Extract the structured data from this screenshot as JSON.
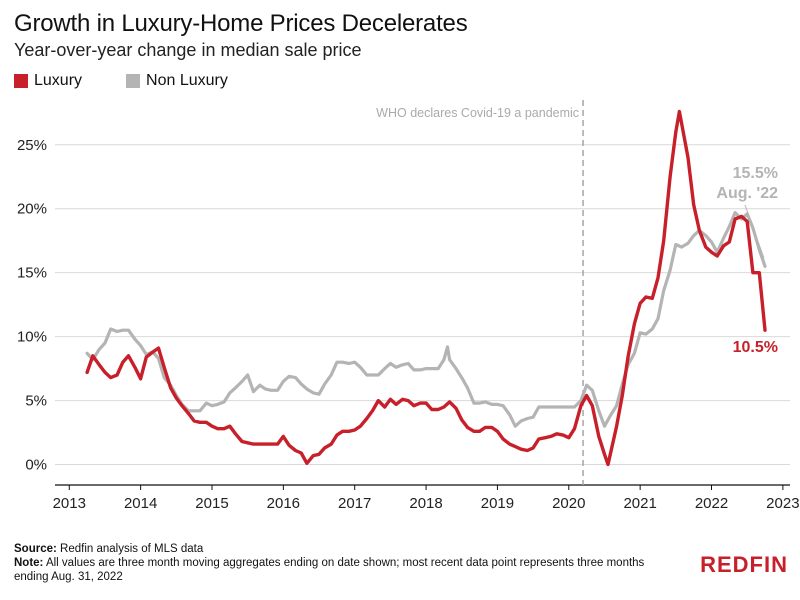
{
  "header": {
    "title": "Growth in Luxury-Home Prices Decelerates",
    "subtitle": "Year-over-year change in median sale price"
  },
  "footer": {
    "source_label": "Source:",
    "source_text": "Redfin analysis of MLS data",
    "note_label": "Note:",
    "note_text": "All values are three month moving aggregates ending on date shown; most recent data point represents three months ending Aug. 31, 2022"
  },
  "logo": {
    "text": "REDFIN"
  },
  "colors": {
    "luxury": "#c8202a",
    "non_luxury": "#b4b4b4",
    "grid": "#d9d9d9",
    "vline": "#a6a6a6"
  },
  "chart_data": {
    "type": "line",
    "title": "Growth in Luxury-Home Prices Decelerates",
    "subtitle": "Year-over-year change in median sale price",
    "x_ticks": [
      "2013",
      "2014",
      "2015",
      "2016",
      "2017",
      "2018",
      "2019",
      "2020",
      "2021",
      "2022",
      "2023"
    ],
    "y_ticks": [
      0,
      5,
      10,
      15,
      20,
      25
    ],
    "y_tick_suffix": "%",
    "ylim": [
      -1.6,
      28.5
    ],
    "xlim": [
      2012.8,
      2023.1
    ],
    "grid": "horizontal",
    "legend": "top-left",
    "series": [
      {
        "name": "Luxury",
        "color": "#c8202a",
        "points": [
          [
            2013.25,
            7.2
          ],
          [
            2013.33,
            8.5
          ],
          [
            2013.42,
            7.8
          ],
          [
            2013.5,
            7.2
          ],
          [
            2013.58,
            6.8
          ],
          [
            2013.67,
            7.0
          ],
          [
            2013.75,
            8.0
          ],
          [
            2013.83,
            8.5
          ],
          [
            2013.92,
            7.6
          ],
          [
            2014.0,
            6.7
          ],
          [
            2014.08,
            8.4
          ],
          [
            2014.17,
            8.8
          ],
          [
            2014.25,
            9.1
          ],
          [
            2014.33,
            7.6
          ],
          [
            2014.42,
            6.0
          ],
          [
            2014.5,
            5.2
          ],
          [
            2014.58,
            4.6
          ],
          [
            2014.67,
            4.0
          ],
          [
            2014.75,
            3.4
          ],
          [
            2014.83,
            3.3
          ],
          [
            2014.92,
            3.3
          ],
          [
            2015.0,
            3.0
          ],
          [
            2015.08,
            2.8
          ],
          [
            2015.17,
            2.8
          ],
          [
            2015.25,
            3.0
          ],
          [
            2015.33,
            2.4
          ],
          [
            2015.42,
            1.8
          ],
          [
            2015.5,
            1.7
          ],
          [
            2015.58,
            1.6
          ],
          [
            2015.67,
            1.6
          ],
          [
            2015.75,
            1.6
          ],
          [
            2015.83,
            1.6
          ],
          [
            2015.92,
            1.6
          ],
          [
            2016.0,
            2.2
          ],
          [
            2016.08,
            1.5
          ],
          [
            2016.17,
            1.1
          ],
          [
            2016.25,
            0.9
          ],
          [
            2016.33,
            0.1
          ],
          [
            2016.42,
            0.7
          ],
          [
            2016.5,
            0.8
          ],
          [
            2016.58,
            1.3
          ],
          [
            2016.67,
            1.6
          ],
          [
            2016.75,
            2.3
          ],
          [
            2016.83,
            2.6
          ],
          [
            2016.92,
            2.6
          ],
          [
            2017.0,
            2.7
          ],
          [
            2017.08,
            3.0
          ],
          [
            2017.17,
            3.6
          ],
          [
            2017.25,
            4.2
          ],
          [
            2017.33,
            5.0
          ],
          [
            2017.42,
            4.5
          ],
          [
            2017.5,
            5.1
          ],
          [
            2017.58,
            4.7
          ],
          [
            2017.67,
            5.1
          ],
          [
            2017.75,
            5.0
          ],
          [
            2017.83,
            4.6
          ],
          [
            2017.92,
            4.8
          ],
          [
            2018.0,
            4.8
          ],
          [
            2018.08,
            4.3
          ],
          [
            2018.17,
            4.3
          ],
          [
            2018.25,
            4.5
          ],
          [
            2018.33,
            4.9
          ],
          [
            2018.42,
            4.4
          ],
          [
            2018.5,
            3.5
          ],
          [
            2018.58,
            2.9
          ],
          [
            2018.67,
            2.6
          ],
          [
            2018.75,
            2.6
          ],
          [
            2018.83,
            2.9
          ],
          [
            2018.92,
            2.9
          ],
          [
            2019.0,
            2.6
          ],
          [
            2019.08,
            2.0
          ],
          [
            2019.17,
            1.6
          ],
          [
            2019.25,
            1.4
          ],
          [
            2019.33,
            1.2
          ],
          [
            2019.42,
            1.1
          ],
          [
            2019.5,
            1.3
          ],
          [
            2019.58,
            2.0
          ],
          [
            2019.67,
            2.1
          ],
          [
            2019.75,
            2.2
          ],
          [
            2019.83,
            2.4
          ],
          [
            2019.92,
            2.3
          ],
          [
            2020.0,
            2.1
          ],
          [
            2020.08,
            2.8
          ],
          [
            2020.17,
            4.6
          ],
          [
            2020.25,
            5.4
          ],
          [
            2020.33,
            4.6
          ],
          [
            2020.42,
            2.2
          ],
          [
            2020.5,
            0.8
          ],
          [
            2020.55,
            0.0
          ],
          [
            2020.67,
            3.0
          ],
          [
            2020.75,
            5.4
          ],
          [
            2020.83,
            8.4
          ],
          [
            2020.92,
            11.0
          ],
          [
            2021.0,
            12.6
          ],
          [
            2021.08,
            13.1
          ],
          [
            2021.17,
            13.0
          ],
          [
            2021.25,
            14.6
          ],
          [
            2021.33,
            17.5
          ],
          [
            2021.42,
            22.5
          ],
          [
            2021.5,
            26.0
          ],
          [
            2021.55,
            27.6
          ],
          [
            2021.67,
            24.0
          ],
          [
            2021.75,
            20.3
          ],
          [
            2021.83,
            18.3
          ],
          [
            2021.92,
            17.0
          ],
          [
            2022.0,
            16.6
          ],
          [
            2022.08,
            16.3
          ],
          [
            2022.17,
            17.1
          ],
          [
            2022.25,
            17.4
          ],
          [
            2022.33,
            19.2
          ],
          [
            2022.42,
            19.4
          ],
          [
            2022.5,
            19.0
          ],
          [
            2022.58,
            15.0
          ],
          [
            2022.67,
            15.0
          ],
          [
            2022.75,
            10.5
          ]
        ]
      },
      {
        "name": "Non Luxury",
        "color": "#b4b4b4",
        "points": [
          [
            2013.25,
            8.7
          ],
          [
            2013.33,
            8.2
          ],
          [
            2013.42,
            9.0
          ],
          [
            2013.5,
            9.5
          ],
          [
            2013.58,
            10.6
          ],
          [
            2013.67,
            10.4
          ],
          [
            2013.75,
            10.5
          ],
          [
            2013.83,
            10.5
          ],
          [
            2013.92,
            9.8
          ],
          [
            2014.0,
            9.3
          ],
          [
            2014.08,
            8.6
          ],
          [
            2014.17,
            8.8
          ],
          [
            2014.25,
            8.3
          ],
          [
            2014.33,
            6.8
          ],
          [
            2014.42,
            6.2
          ],
          [
            2014.5,
            5.4
          ],
          [
            2014.58,
            4.7
          ],
          [
            2014.67,
            4.2
          ],
          [
            2014.75,
            4.2
          ],
          [
            2014.83,
            4.2
          ],
          [
            2014.92,
            4.8
          ],
          [
            2015.0,
            4.6
          ],
          [
            2015.08,
            4.7
          ],
          [
            2015.17,
            4.9
          ],
          [
            2015.25,
            5.6
          ],
          [
            2015.33,
            6.0
          ],
          [
            2015.42,
            6.5
          ],
          [
            2015.5,
            7.0
          ],
          [
            2015.58,
            5.7
          ],
          [
            2015.67,
            6.2
          ],
          [
            2015.75,
            5.9
          ],
          [
            2015.83,
            5.8
          ],
          [
            2015.92,
            5.8
          ],
          [
            2016.0,
            6.5
          ],
          [
            2016.08,
            6.9
          ],
          [
            2016.17,
            6.8
          ],
          [
            2016.25,
            6.3
          ],
          [
            2016.33,
            5.9
          ],
          [
            2016.42,
            5.6
          ],
          [
            2016.5,
            5.5
          ],
          [
            2016.58,
            6.3
          ],
          [
            2016.67,
            7.0
          ],
          [
            2016.75,
            8.0
          ],
          [
            2016.83,
            8.0
          ],
          [
            2016.92,
            7.9
          ],
          [
            2017.0,
            8.0
          ],
          [
            2017.08,
            7.6
          ],
          [
            2017.17,
            7.0
          ],
          [
            2017.25,
            7.0
          ],
          [
            2017.33,
            7.0
          ],
          [
            2017.42,
            7.5
          ],
          [
            2017.5,
            7.9
          ],
          [
            2017.58,
            7.6
          ],
          [
            2017.67,
            7.8
          ],
          [
            2017.75,
            7.9
          ],
          [
            2017.83,
            7.4
          ],
          [
            2017.92,
            7.4
          ],
          [
            2018.0,
            7.5
          ],
          [
            2018.08,
            7.5
          ],
          [
            2018.17,
            7.5
          ],
          [
            2018.25,
            8.2
          ],
          [
            2018.3,
            9.2
          ],
          [
            2018.33,
            8.2
          ],
          [
            2018.42,
            7.5
          ],
          [
            2018.5,
            6.8
          ],
          [
            2018.58,
            6.0
          ],
          [
            2018.67,
            4.8
          ],
          [
            2018.75,
            4.8
          ],
          [
            2018.83,
            4.9
          ],
          [
            2018.92,
            4.7
          ],
          [
            2019.0,
            4.7
          ],
          [
            2019.08,
            4.6
          ],
          [
            2019.17,
            3.9
          ],
          [
            2019.25,
            3.0
          ],
          [
            2019.33,
            3.4
          ],
          [
            2019.42,
            3.6
          ],
          [
            2019.5,
            3.7
          ],
          [
            2019.58,
            4.5
          ],
          [
            2019.67,
            4.5
          ],
          [
            2019.75,
            4.5
          ],
          [
            2019.83,
            4.5
          ],
          [
            2019.92,
            4.5
          ],
          [
            2020.0,
            4.5
          ],
          [
            2020.08,
            4.5
          ],
          [
            2020.17,
            5.0
          ],
          [
            2020.25,
            6.2
          ],
          [
            2020.33,
            5.8
          ],
          [
            2020.42,
            4.2
          ],
          [
            2020.5,
            3.0
          ],
          [
            2020.58,
            3.8
          ],
          [
            2020.67,
            4.6
          ],
          [
            2020.75,
            6.3
          ],
          [
            2020.83,
            7.8
          ],
          [
            2020.92,
            8.7
          ],
          [
            2021.0,
            10.3
          ],
          [
            2021.08,
            10.2
          ],
          [
            2021.17,
            10.6
          ],
          [
            2021.25,
            11.4
          ],
          [
            2021.33,
            13.6
          ],
          [
            2021.42,
            15.2
          ],
          [
            2021.5,
            17.2
          ],
          [
            2021.58,
            17.0
          ],
          [
            2021.67,
            17.3
          ],
          [
            2021.75,
            17.9
          ],
          [
            2021.83,
            18.3
          ],
          [
            2021.92,
            17.9
          ],
          [
            2022.0,
            17.4
          ],
          [
            2022.08,
            16.6
          ],
          [
            2022.17,
            17.7
          ],
          [
            2022.25,
            18.6
          ],
          [
            2022.33,
            19.7
          ],
          [
            2022.42,
            19.2
          ],
          [
            2022.5,
            19.6
          ],
          [
            2022.58,
            18.5
          ],
          [
            2022.67,
            16.8
          ],
          [
            2022.75,
            15.5
          ]
        ]
      }
    ],
    "annotations": [
      {
        "text": "WHO declares Covid-19 a pandemic",
        "x": 2020.2
      },
      {
        "text": "15.5%",
        "series": "Non Luxury"
      },
      {
        "text": "Aug. '22",
        "series": "Non Luxury"
      },
      {
        "text": "10.5%",
        "series": "Luxury"
      }
    ]
  }
}
